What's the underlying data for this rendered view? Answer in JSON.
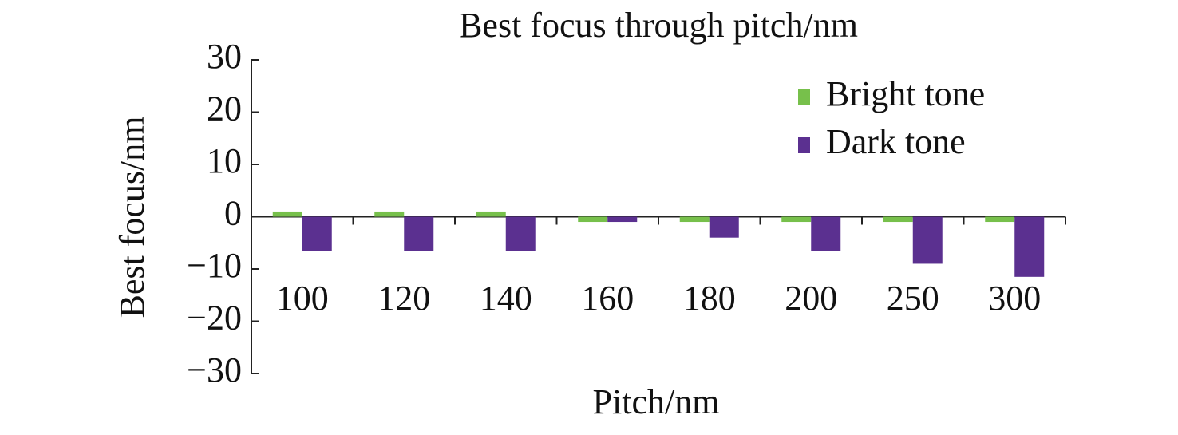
{
  "chart_data": {
    "type": "bar",
    "title": "Best focus through pitch/nm",
    "x_label": "Pitch/nm",
    "y_label": "Best focus/nm",
    "categories": [
      "100",
      "120",
      "140",
      "160",
      "180",
      "200",
      "250",
      "300"
    ],
    "series": [
      {
        "name": "Bright tone",
        "color": "#77c04b",
        "values": [
          1,
          1,
          1,
          -1,
          -1,
          -1,
          -1,
          -1
        ]
      },
      {
        "name": "Dark tone",
        "color": "#5b3090",
        "values": [
          -6.5,
          -6.5,
          -6.5,
          -1,
          -4,
          -6.5,
          -9,
          -11.5
        ]
      }
    ],
    "ylim": [
      -30,
      30
    ],
    "yticks": [
      {
        "value": -30,
        "label": "−30"
      },
      {
        "value": -20,
        "label": "−20"
      },
      {
        "value": -10,
        "label": "−10"
      },
      0,
      10,
      20,
      30
    ],
    "grid": false,
    "legend": "upper right"
  }
}
